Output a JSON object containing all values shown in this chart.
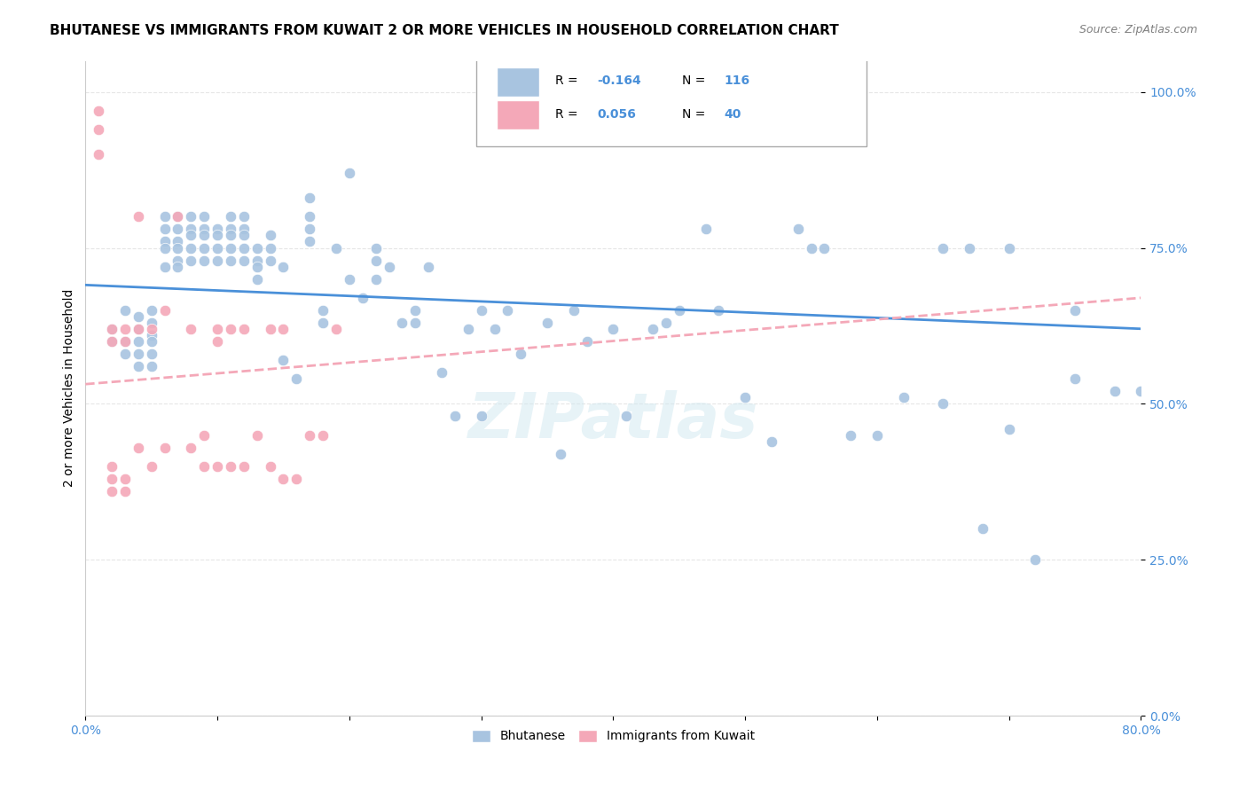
{
  "title": "BHUTANESE VS IMMIGRANTS FROM KUWAIT 2 OR MORE VEHICLES IN HOUSEHOLD CORRELATION CHART",
  "source": "Source: ZipAtlas.com",
  "xlabel_bottom": "",
  "ylabel": "2 or more Vehicles in Household",
  "x_min": 0.0,
  "x_max": 0.8,
  "y_min": 0.0,
  "y_max": 1.05,
  "x_ticks": [
    0.0,
    0.1,
    0.2,
    0.3,
    0.4,
    0.5,
    0.6,
    0.7,
    0.8
  ],
  "x_tick_labels": [
    "0.0%",
    "",
    "",
    "",
    "",
    "",
    "",
    "",
    "80.0%"
  ],
  "y_tick_labels": [
    "0.0%",
    "25.0%",
    "50.0%",
    "75.0%",
    "100.0%"
  ],
  "y_ticks": [
    0.0,
    0.25,
    0.5,
    0.75,
    1.0
  ],
  "blue_R": -0.164,
  "blue_N": 116,
  "pink_R": 0.056,
  "pink_N": 40,
  "blue_color": "#a8c4e0",
  "pink_color": "#f4a8b8",
  "blue_line_color": "#4a90d9",
  "pink_line_color": "#f4a8b8",
  "legend_blue_color": "#a8c4e0",
  "legend_pink_color": "#f4a8b8",
  "blue_scatter": {
    "x": [
      0.02,
      0.02,
      0.03,
      0.03,
      0.03,
      0.04,
      0.04,
      0.04,
      0.04,
      0.04,
      0.05,
      0.05,
      0.05,
      0.05,
      0.05,
      0.05,
      0.06,
      0.06,
      0.06,
      0.06,
      0.06,
      0.07,
      0.07,
      0.07,
      0.07,
      0.07,
      0.07,
      0.08,
      0.08,
      0.08,
      0.08,
      0.08,
      0.09,
      0.09,
      0.09,
      0.09,
      0.09,
      0.1,
      0.1,
      0.1,
      0.1,
      0.11,
      0.11,
      0.11,
      0.11,
      0.11,
      0.12,
      0.12,
      0.12,
      0.12,
      0.12,
      0.13,
      0.13,
      0.13,
      0.13,
      0.14,
      0.14,
      0.14,
      0.15,
      0.15,
      0.16,
      0.17,
      0.17,
      0.17,
      0.17,
      0.18,
      0.18,
      0.19,
      0.2,
      0.2,
      0.21,
      0.22,
      0.22,
      0.22,
      0.23,
      0.24,
      0.25,
      0.25,
      0.26,
      0.27,
      0.28,
      0.29,
      0.3,
      0.3,
      0.31,
      0.32,
      0.33,
      0.35,
      0.36,
      0.37,
      0.38,
      0.4,
      0.41,
      0.43,
      0.44,
      0.45,
      0.47,
      0.48,
      0.5,
      0.52,
      0.54,
      0.55,
      0.56,
      0.58,
      0.6,
      0.62,
      0.65,
      0.67,
      0.68,
      0.7,
      0.72,
      0.75,
      0.78,
      0.8,
      0.65,
      0.7,
      0.75
    ],
    "y": [
      0.62,
      0.6,
      0.65,
      0.6,
      0.58,
      0.64,
      0.62,
      0.6,
      0.58,
      0.56,
      0.65,
      0.63,
      0.61,
      0.6,
      0.58,
      0.56,
      0.8,
      0.78,
      0.76,
      0.75,
      0.72,
      0.8,
      0.78,
      0.76,
      0.75,
      0.73,
      0.72,
      0.8,
      0.78,
      0.77,
      0.75,
      0.73,
      0.8,
      0.78,
      0.77,
      0.75,
      0.73,
      0.78,
      0.77,
      0.75,
      0.73,
      0.8,
      0.78,
      0.77,
      0.75,
      0.73,
      0.8,
      0.78,
      0.77,
      0.75,
      0.73,
      0.75,
      0.73,
      0.72,
      0.7,
      0.77,
      0.75,
      0.73,
      0.72,
      0.57,
      0.54,
      0.83,
      0.8,
      0.78,
      0.76,
      0.65,
      0.63,
      0.75,
      0.87,
      0.7,
      0.67,
      0.75,
      0.73,
      0.7,
      0.72,
      0.63,
      0.65,
      0.63,
      0.72,
      0.55,
      0.48,
      0.62,
      0.65,
      0.48,
      0.62,
      0.65,
      0.58,
      0.63,
      0.42,
      0.65,
      0.6,
      0.62,
      0.48,
      0.62,
      0.63,
      0.65,
      0.78,
      0.65,
      0.51,
      0.44,
      0.78,
      0.75,
      0.75,
      0.45,
      0.45,
      0.51,
      0.75,
      0.75,
      0.3,
      0.75,
      0.25,
      0.65,
      0.52,
      0.52,
      0.5,
      0.46,
      0.54
    ]
  },
  "pink_scatter": {
    "x": [
      0.01,
      0.01,
      0.01,
      0.02,
      0.02,
      0.02,
      0.02,
      0.02,
      0.03,
      0.03,
      0.03,
      0.03,
      0.04,
      0.04,
      0.04,
      0.05,
      0.05,
      0.06,
      0.06,
      0.07,
      0.08,
      0.08,
      0.09,
      0.09,
      0.1,
      0.1,
      0.1,
      0.11,
      0.11,
      0.12,
      0.12,
      0.13,
      0.14,
      0.14,
      0.15,
      0.15,
      0.16,
      0.17,
      0.18,
      0.19
    ],
    "y": [
      0.97,
      0.94,
      0.9,
      0.62,
      0.6,
      0.4,
      0.38,
      0.36,
      0.62,
      0.6,
      0.38,
      0.36,
      0.8,
      0.62,
      0.43,
      0.62,
      0.4,
      0.65,
      0.43,
      0.8,
      0.62,
      0.43,
      0.45,
      0.4,
      0.62,
      0.6,
      0.4,
      0.62,
      0.4,
      0.62,
      0.4,
      0.45,
      0.62,
      0.4,
      0.62,
      0.38,
      0.38,
      0.45,
      0.45,
      0.62
    ]
  },
  "background_color": "#ffffff",
  "grid_color": "#e0e0e0",
  "title_fontsize": 11,
  "axis_label_fontsize": 10,
  "tick_fontsize": 10,
  "tick_color": "#4a90d9",
  "watermark_text": "ZIPatlas",
  "watermark_color": "#d0e8f0",
  "watermark_alpha": 0.5
}
